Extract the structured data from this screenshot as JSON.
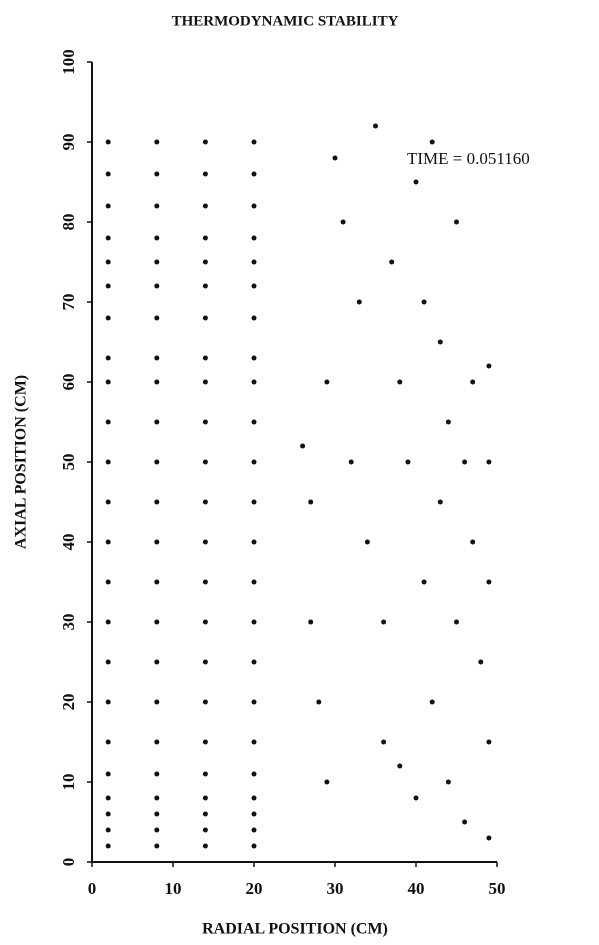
{
  "chart_data": {
    "type": "scatter",
    "title": "THERMODYNAMIC STABILITY",
    "x_label": "RADIAL POSITION (CM)",
    "y_label": "AXIAL POSITION (CM)",
    "annotation": "TIME = 0.051160",
    "color": "#111111",
    "xlim": [
      0,
      50
    ],
    "ylim": [
      0,
      100
    ],
    "xticks": [
      0,
      10,
      20,
      30,
      40,
      50
    ],
    "yticks": [
      0,
      10,
      20,
      30,
      40,
      50,
      60,
      70,
      80,
      90,
      100
    ],
    "grid": false,
    "x": [
      2,
      8,
      14,
      20,
      2,
      8,
      14,
      20,
      2,
      8,
      14,
      20,
      2,
      8,
      14,
      20,
      2,
      8,
      14,
      20,
      2,
      8,
      14,
      20,
      2,
      8,
      14,
      20,
      2,
      8,
      14,
      20,
      2,
      8,
      14,
      20,
      2,
      8,
      14,
      20,
      2,
      8,
      14,
      20,
      2,
      8,
      14,
      20,
      2,
      8,
      14,
      20,
      2,
      8,
      14,
      20,
      2,
      8,
      14,
      20,
      2,
      8,
      14,
      20,
      2,
      8,
      14,
      20,
      2,
      8,
      14,
      20,
      2,
      8,
      14,
      20,
      2,
      8,
      14,
      20,
      2,
      8,
      14,
      20,
      2,
      8,
      14,
      20,
      2,
      8,
      14,
      20,
      27,
      27,
      28,
      29,
      30,
      31,
      32,
      33,
      34,
      35,
      36,
      36,
      37,
      38,
      38,
      39,
      40,
      40,
      41,
      41,
      42,
      42,
      43,
      43,
      44,
      44,
      45,
      45,
      46,
      46,
      47,
      47,
      48,
      49,
      49,
      49,
      49,
      49,
      26,
      29
    ],
    "y": [
      2,
      2,
      2,
      2,
      4,
      4,
      4,
      4,
      6,
      6,
      6,
      6,
      8,
      8,
      8,
      8,
      11,
      11,
      11,
      11,
      15,
      15,
      15,
      15,
      20,
      20,
      20,
      20,
      25,
      25,
      25,
      25,
      30,
      30,
      30,
      30,
      35,
      35,
      35,
      35,
      40,
      40,
      40,
      40,
      45,
      45,
      45,
      45,
      50,
      50,
      50,
      50,
      55,
      55,
      55,
      55,
      60,
      60,
      60,
      60,
      63,
      63,
      63,
      63,
      68,
      68,
      68,
      68,
      72,
      72,
      72,
      72,
      75,
      75,
      75,
      75,
      78,
      78,
      78,
      78,
      82,
      82,
      82,
      82,
      86,
      86,
      86,
      86,
      90,
      90,
      90,
      90,
      30,
      45,
      20,
      60,
      88,
      80,
      50,
      70,
      40,
      92,
      30,
      15,
      75,
      60,
      12,
      50,
      85,
      8,
      70,
      35,
      90,
      20,
      65,
      45,
      10,
      55,
      80,
      30,
      50,
      5,
      60,
      40,
      25,
      62,
      50,
      35,
      15,
      3,
      52,
      10
    ]
  }
}
